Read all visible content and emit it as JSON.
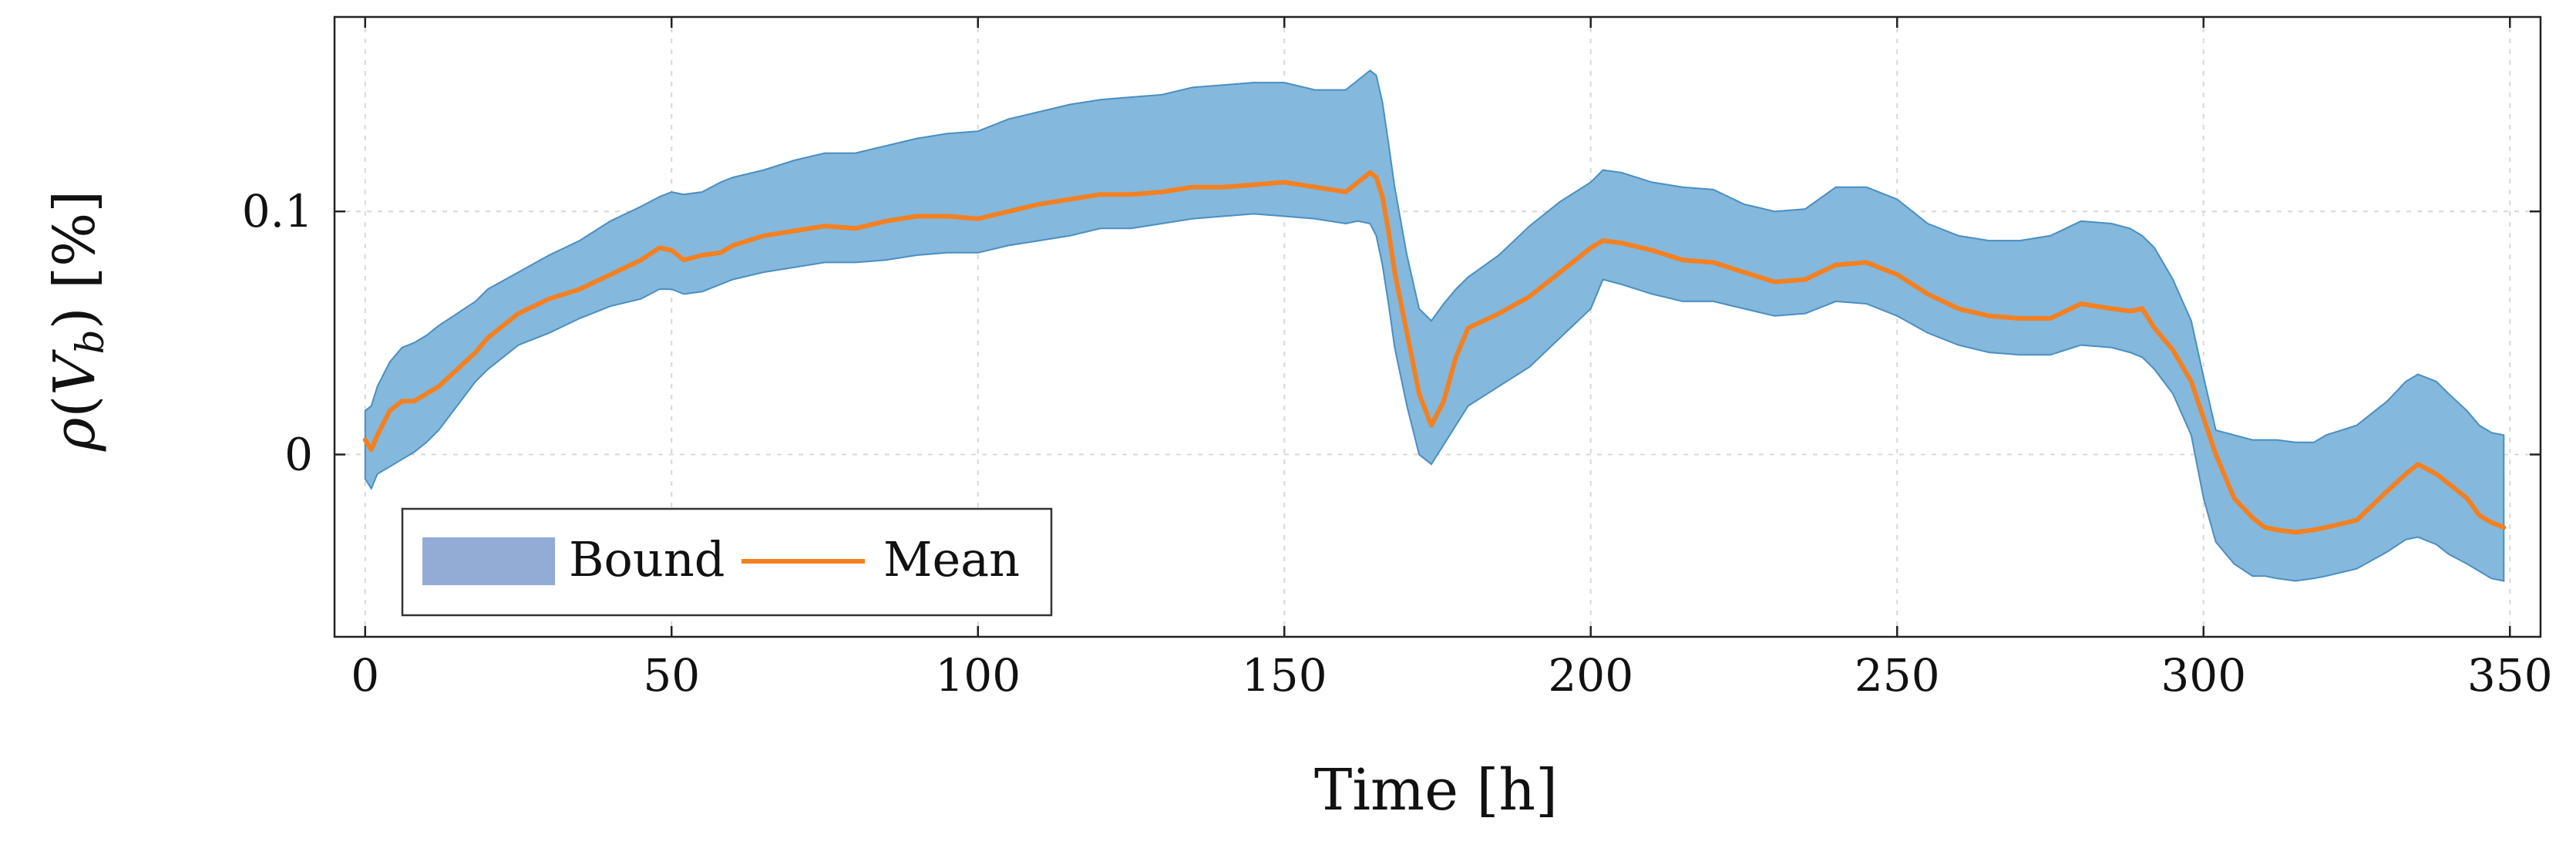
{
  "chart_data": {
    "type": "area",
    "title": "",
    "xlabel": "Time [h]",
    "ylabel_parts": {
      "rho": "ρ",
      "open": "(",
      "V": "V",
      "sub": "b",
      "close": ")",
      "unit": " [%]"
    },
    "xlim": [
      -5,
      355
    ],
    "ylim": [
      -0.075,
      0.18
    ],
    "xticks": [
      0,
      50,
      100,
      150,
      200,
      250,
      300,
      350
    ],
    "xtick_labels": [
      "0",
      "50",
      "100",
      "150",
      "200",
      "250",
      "300",
      "350"
    ],
    "yticks": [
      0,
      0.1
    ],
    "ytick_labels": [
      "0",
      "0.1"
    ],
    "grid": true,
    "legend": {
      "placement": "lower-left",
      "entries": [
        "Bound",
        "Mean"
      ]
    },
    "colors": {
      "bound": "#84b8dc",
      "bound_edge": "#4a8fc2",
      "bound_legend": "#93acd6",
      "mean": "#f48020"
    },
    "series": [
      {
        "name": "Mean",
        "x": [
          0,
          1,
          2,
          4,
          6,
          8,
          10,
          12,
          15,
          18,
          20,
          25,
          30,
          35,
          40,
          45,
          48,
          50,
          52,
          55,
          58,
          60,
          65,
          70,
          75,
          80,
          85,
          90,
          95,
          100,
          105,
          110,
          115,
          120,
          125,
          130,
          135,
          140,
          145,
          150,
          155,
          160,
          162,
          164,
          165,
          166,
          167,
          168,
          170,
          172,
          174,
          176,
          178,
          180,
          185,
          190,
          195,
          200,
          202,
          205,
          210,
          215,
          220,
          225,
          230,
          235,
          240,
          245,
          250,
          255,
          260,
          265,
          270,
          275,
          280,
          285,
          288,
          290,
          292,
          295,
          298,
          300,
          302,
          305,
          308,
          310,
          312,
          315,
          318,
          320,
          325,
          330,
          333,
          335,
          338,
          340,
          343,
          345,
          347,
          349
        ],
        "mean": [
          0.006,
          0.002,
          0.008,
          0.018,
          0.022,
          0.022,
          0.025,
          0.028,
          0.035,
          0.042,
          0.048,
          0.058,
          0.064,
          0.068,
          0.074,
          0.08,
          0.085,
          0.084,
          0.08,
          0.082,
          0.083,
          0.086,
          0.09,
          0.092,
          0.094,
          0.093,
          0.096,
          0.098,
          0.098,
          0.097,
          0.1,
          0.103,
          0.105,
          0.107,
          0.107,
          0.108,
          0.11,
          0.11,
          0.111,
          0.112,
          0.11,
          0.108,
          0.112,
          0.116,
          0.114,
          0.106,
          0.092,
          0.075,
          0.05,
          0.025,
          0.012,
          0.022,
          0.04,
          0.052,
          0.058,
          0.065,
          0.075,
          0.085,
          0.088,
          0.087,
          0.084,
          0.08,
          0.079,
          0.075,
          0.071,
          0.072,
          0.078,
          0.079,
          0.074,
          0.066,
          0.06,
          0.057,
          0.056,
          0.056,
          0.062,
          0.06,
          0.059,
          0.06,
          0.052,
          0.043,
          0.03,
          0.015,
          0.0,
          -0.018,
          -0.026,
          -0.03,
          -0.031,
          -0.032,
          -0.031,
          -0.03,
          -0.027,
          -0.015,
          -0.008,
          -0.004,
          -0.008,
          -0.012,
          -0.018,
          -0.025,
          -0.028,
          -0.03
        ],
        "lower": [
          -0.01,
          -0.014,
          -0.008,
          -0.005,
          -0.002,
          0.001,
          0.005,
          0.01,
          0.02,
          0.03,
          0.035,
          0.045,
          0.05,
          0.056,
          0.061,
          0.064,
          0.068,
          0.068,
          0.066,
          0.067,
          0.07,
          0.072,
          0.075,
          0.077,
          0.079,
          0.079,
          0.08,
          0.082,
          0.083,
          0.083,
          0.086,
          0.088,
          0.09,
          0.093,
          0.093,
          0.095,
          0.097,
          0.098,
          0.099,
          0.098,
          0.097,
          0.095,
          0.096,
          0.095,
          0.09,
          0.078,
          0.062,
          0.044,
          0.02,
          0.0,
          -0.004,
          0.004,
          0.012,
          0.02,
          0.028,
          0.036,
          0.048,
          0.06,
          0.072,
          0.07,
          0.066,
          0.063,
          0.063,
          0.06,
          0.057,
          0.058,
          0.063,
          0.062,
          0.057,
          0.05,
          0.045,
          0.042,
          0.041,
          0.041,
          0.045,
          0.044,
          0.042,
          0.04,
          0.035,
          0.025,
          0.008,
          -0.018,
          -0.036,
          -0.045,
          -0.05,
          -0.05,
          -0.051,
          -0.052,
          -0.051,
          -0.05,
          -0.047,
          -0.04,
          -0.035,
          -0.034,
          -0.037,
          -0.041,
          -0.045,
          -0.048,
          -0.051,
          -0.052
        ],
        "upper": [
          0.018,
          0.02,
          0.028,
          0.038,
          0.044,
          0.046,
          0.049,
          0.053,
          0.058,
          0.063,
          0.068,
          0.075,
          0.082,
          0.088,
          0.096,
          0.102,
          0.106,
          0.108,
          0.107,
          0.108,
          0.112,
          0.114,
          0.117,
          0.121,
          0.124,
          0.124,
          0.127,
          0.13,
          0.132,
          0.133,
          0.138,
          0.141,
          0.144,
          0.146,
          0.147,
          0.148,
          0.151,
          0.152,
          0.153,
          0.153,
          0.15,
          0.15,
          0.154,
          0.158,
          0.156,
          0.145,
          0.128,
          0.11,
          0.082,
          0.06,
          0.055,
          0.062,
          0.068,
          0.073,
          0.082,
          0.094,
          0.104,
          0.112,
          0.117,
          0.116,
          0.112,
          0.11,
          0.109,
          0.103,
          0.1,
          0.101,
          0.11,
          0.11,
          0.105,
          0.095,
          0.09,
          0.088,
          0.088,
          0.09,
          0.096,
          0.095,
          0.093,
          0.09,
          0.085,
          0.072,
          0.055,
          0.032,
          0.01,
          0.008,
          0.006,
          0.006,
          0.006,
          0.005,
          0.005,
          0.008,
          0.012,
          0.022,
          0.03,
          0.033,
          0.03,
          0.025,
          0.018,
          0.012,
          0.009,
          0.008
        ]
      }
    ]
  }
}
